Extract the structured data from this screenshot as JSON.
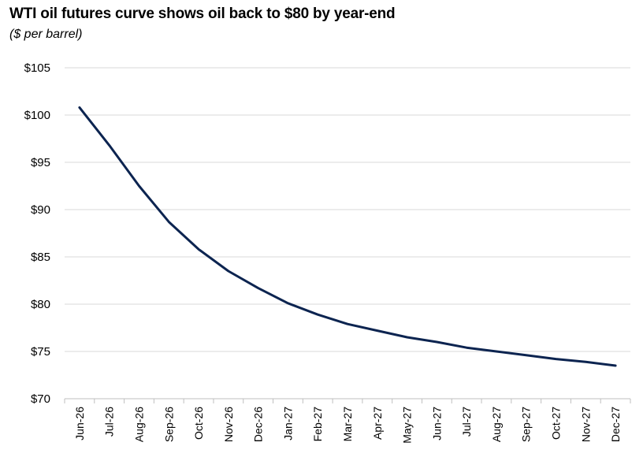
{
  "chart_data": {
    "type": "line",
    "title": "WTI oil futures curve shows oil back to $80 by year-end",
    "subtitle": "($ per barrel)",
    "xlabel": "",
    "ylabel": "",
    "categories": [
      "Jun-26",
      "Jul-26",
      "Aug-26",
      "Sep-26",
      "Oct-26",
      "Nov-26",
      "Dec-26",
      "Jan-27",
      "Feb-27",
      "Mar-27",
      "Apr-27",
      "May-27",
      "Jun-27",
      "Jul-27",
      "Aug-27",
      "Sep-27",
      "Oct-27",
      "Nov-27",
      "Dec-27"
    ],
    "series": [
      {
        "values": [
          100.8,
          96.8,
          92.5,
          88.7,
          85.8,
          83.5,
          81.7,
          80.1,
          78.9,
          77.9,
          77.2,
          76.5,
          76.0,
          75.4,
          75.0,
          74.6,
          74.2,
          73.9,
          73.5
        ],
        "color": "#0c2450"
      }
    ],
    "yticks": [
      "$70",
      "$75",
      "$80",
      "$85",
      "$90",
      "$95",
      "$100",
      "$105"
    ],
    "ylim": [
      70,
      105
    ],
    "grid": true,
    "legend": "none"
  }
}
